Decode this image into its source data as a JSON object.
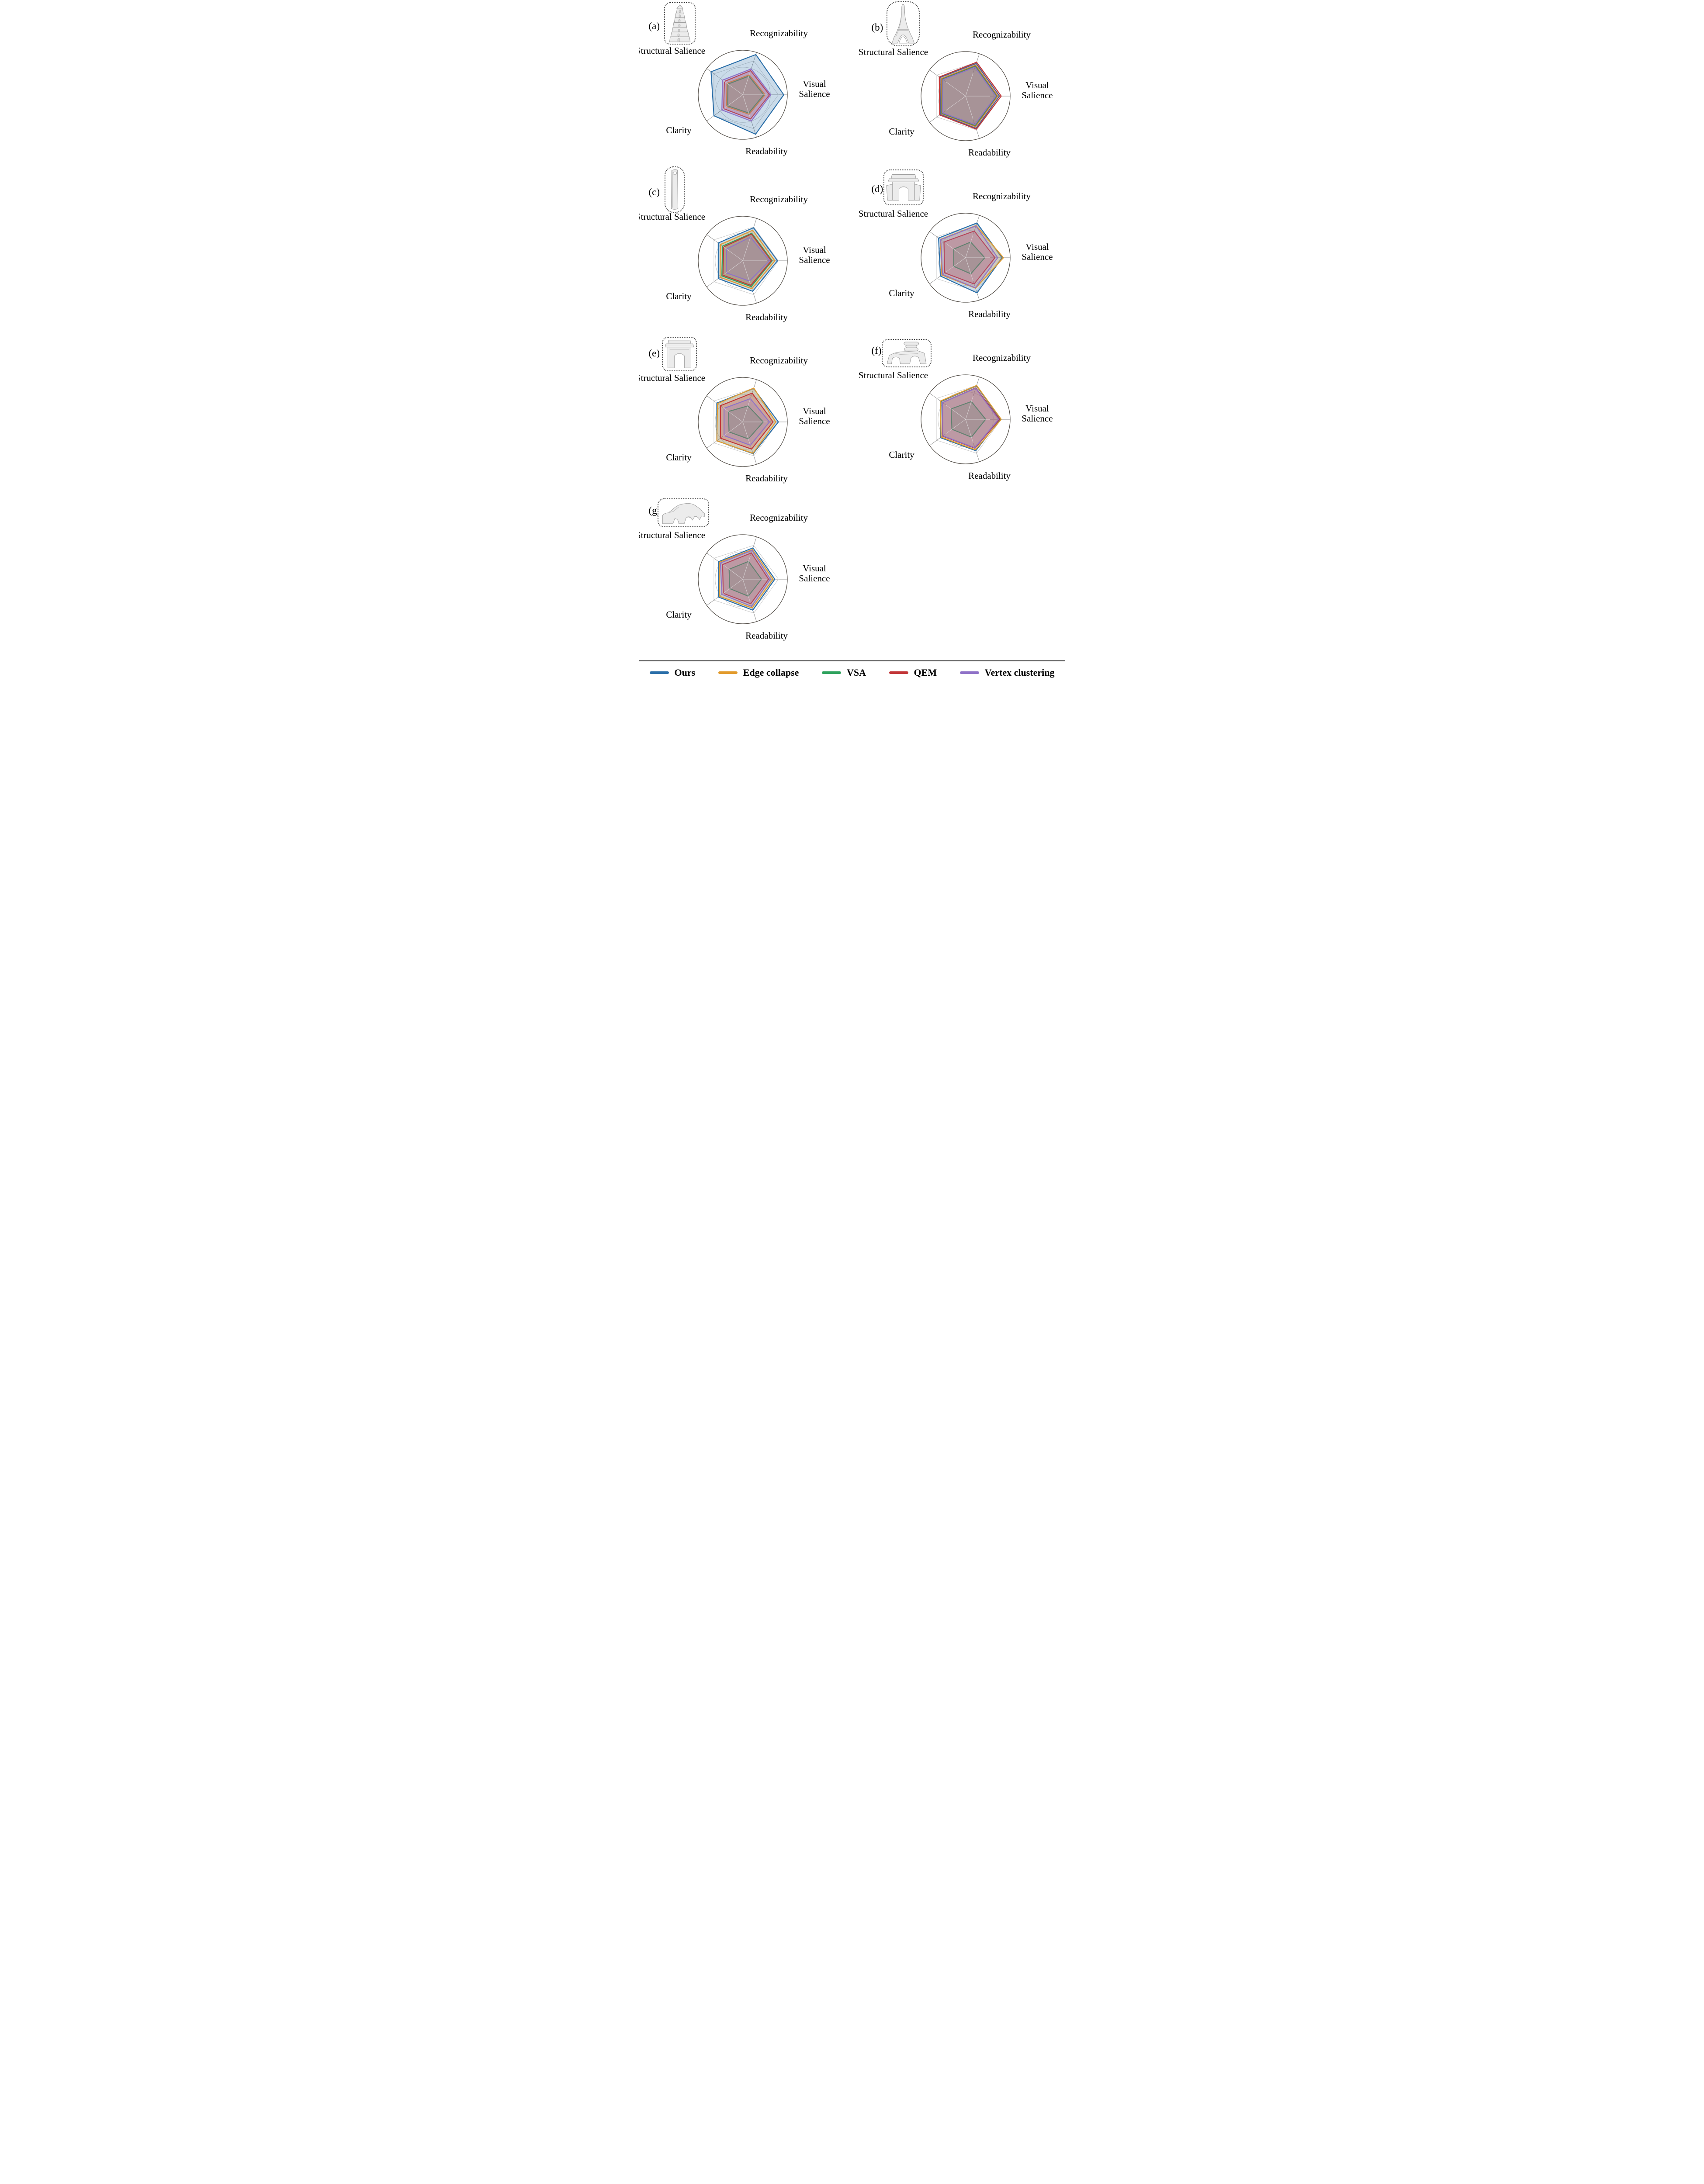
{
  "legend": {
    "items": [
      {
        "label": "Ours",
        "color": "#2b6fa9"
      },
      {
        "label": "Edge collapse",
        "color": "#e29b2d"
      },
      {
        "label": "VSA",
        "color": "#2fa25e"
      },
      {
        "label": "QEM",
        "color": "#c23638"
      },
      {
        "label": "Vertex clustering",
        "color": "#8f72c8"
      }
    ]
  },
  "chart_data": {
    "type": "radar",
    "axes": [
      "Recognizability",
      "Visual Salience",
      "Readability",
      "Clarity",
      "Structural Salience"
    ],
    "scale": {
      "min": 0,
      "max": 1,
      "outer_circle": 1.0,
      "pentagon_gridline": 0.8,
      "circle_gridline": 0.62
    },
    "legend_position": "bottom",
    "series_names": [
      "Ours",
      "Edge collapse",
      "VSA",
      "QEM",
      "Vertex clustering"
    ],
    "charts": [
      {
        "label": "(a)",
        "model": "pagoda",
        "values": {
          "Ours": [
            0.95,
            0.92,
            0.93,
            0.8,
            0.88
          ],
          "Edge collapse": [
            0.47,
            0.5,
            0.46,
            0.45,
            0.44
          ],
          "VSA": [
            0.44,
            0.47,
            0.43,
            0.42,
            0.41
          ],
          "QEM": [
            0.57,
            0.6,
            0.57,
            0.53,
            0.51
          ],
          "Vertex clustering": [
            0.61,
            0.63,
            0.62,
            0.58,
            0.56
          ]
        }
      },
      {
        "label": "(b)",
        "model": "eiffel-tower",
        "values": {
          "Ours": [
            0.77,
            0.76,
            0.76,
            0.7,
            0.71
          ],
          "Edge collapse": [
            0.73,
            0.72,
            0.72,
            0.67,
            0.67
          ],
          "VSA": [
            0.71,
            0.7,
            0.7,
            0.66,
            0.65
          ],
          "QEM": [
            0.8,
            0.8,
            0.78,
            0.72,
            0.73
          ],
          "Vertex clustering": [
            0.68,
            0.68,
            0.67,
            0.64,
            0.63
          ]
        }
      },
      {
        "label": "(c)",
        "model": "monolith-column",
        "values": {
          "Ours": [
            0.78,
            0.78,
            0.72,
            0.68,
            0.68
          ],
          "Edge collapse": [
            0.72,
            0.72,
            0.66,
            0.63,
            0.62
          ],
          "VSA": [
            0.65,
            0.66,
            0.61,
            0.58,
            0.56
          ],
          "QEM": [
            0.63,
            0.64,
            0.58,
            0.55,
            0.53
          ],
          "Vertex clustering": [
            0.56,
            0.6,
            0.48,
            0.46,
            0.45
          ]
        }
      },
      {
        "label": "(d)",
        "model": "gate-monument",
        "values": {
          "Ours": [
            0.82,
            0.82,
            0.83,
            0.7,
            0.75
          ],
          "Edge collapse": [
            0.76,
            0.85,
            0.72,
            0.66,
            0.7
          ],
          "VSA": [
            0.37,
            0.43,
            0.38,
            0.33,
            0.33
          ],
          "QEM": [
            0.63,
            0.66,
            0.62,
            0.58,
            0.6
          ],
          "Vertex clustering": [
            0.75,
            0.72,
            0.71,
            0.64,
            0.69
          ]
        }
      },
      {
        "label": "(e)",
        "model": "arch-monument",
        "values": {
          "Ours": [
            0.79,
            0.8,
            0.75,
            0.72,
            0.72
          ],
          "Edge collapse": [
            0.8,
            0.74,
            0.74,
            0.72,
            0.7
          ],
          "VSA": [
            0.38,
            0.46,
            0.4,
            0.38,
            0.4
          ],
          "QEM": [
            0.68,
            0.68,
            0.64,
            0.62,
            0.62
          ],
          "Vertex clustering": [
            0.55,
            0.6,
            0.55,
            0.52,
            0.52
          ]
        }
      },
      {
        "label": "(f)",
        "model": "tiered-arch-gate",
        "values": {
          "Ours": [
            0.79,
            0.78,
            0.74,
            0.7,
            0.68
          ],
          "Edge collapse": [
            0.8,
            0.8,
            0.72,
            0.68,
            0.7
          ],
          "VSA": [
            0.42,
            0.45,
            0.42,
            0.38,
            0.4
          ],
          "QEM": [
            0.74,
            0.76,
            0.68,
            0.64,
            0.64
          ],
          "Vertex clustering": [
            0.73,
            0.74,
            0.67,
            0.63,
            0.64
          ]
        }
      },
      {
        "label": "(g)",
        "model": "rock-ridge",
        "values": {
          "Ours": [
            0.74,
            0.72,
            0.73,
            0.68,
            0.67
          ],
          "Edge collapse": [
            0.7,
            0.68,
            0.68,
            0.65,
            0.65
          ],
          "VSA": [
            0.42,
            0.42,
            0.4,
            0.36,
            0.38
          ],
          "QEM": [
            0.62,
            0.58,
            0.58,
            0.54,
            0.56
          ],
          "Vertex clustering": [
            0.68,
            0.62,
            0.64,
            0.58,
            0.62
          ]
        }
      }
    ]
  }
}
